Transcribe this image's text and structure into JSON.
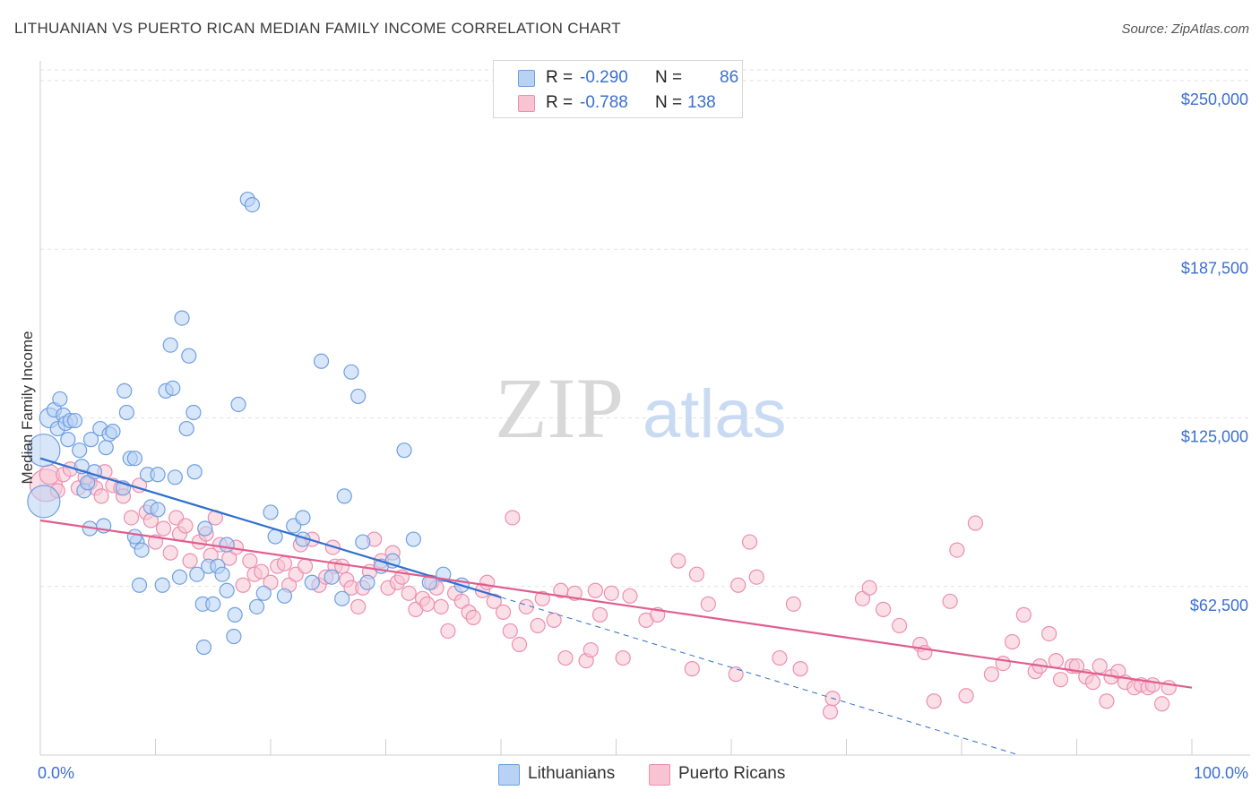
{
  "title": "LITHUANIAN VS PUERTO RICAN MEDIAN FAMILY INCOME CORRELATION CHART",
  "source": "Source: ZipAtlas.com",
  "watermark": {
    "zip": "ZIP",
    "atlas": "atlas"
  },
  "colors": {
    "lithuanians_fill": "#b8d2f4",
    "lithuanians_stroke": "#6f9fe0",
    "lithuanians_line": "#2f6fd0",
    "puerto_fill": "#f8c4d4",
    "puerto_stroke": "#ec8fb0",
    "puerto_line": "#e05e8e",
    "axis_text": "#3b6fd0",
    "grid": "#e2e2e2"
  },
  "legend": {
    "rows": [
      {
        "r_label": "R =",
        "r_value": "-0.290",
        "n_label": "N =",
        "n_value": "86"
      },
      {
        "r_label": "R =",
        "r_value": "-0.788",
        "n_label": "N =",
        "n_value": "138"
      }
    ]
  },
  "bottom_legend": {
    "lithuanians": "Lithuanians",
    "puerto_ricans": "Puerto Ricans"
  },
  "chart_data": {
    "type": "scatter",
    "title": "LITHUANIAN VS PUERTO RICAN MEDIAN FAMILY INCOME CORRELATION CHART",
    "ylabel": "Median Family Income",
    "xlabel": "",
    "x_tick_labels": [
      "0.0%",
      "100.0%"
    ],
    "y_tick_labels": [
      "$62,500",
      "$125,000",
      "$187,500",
      "$250,000"
    ],
    "y_ticks": [
      62500,
      125000,
      187500,
      250000
    ],
    "xlim": [
      0,
      100
    ],
    "ylim": [
      0,
      255000
    ],
    "grid": true,
    "legend_position": "top-center",
    "series": [
      {
        "name": "Lithuanians",
        "r": -0.29,
        "n": 86,
        "trend": {
          "x0": 0,
          "y0": 110000,
          "x1": 40,
          "y1": 58500,
          "dashed_to_x": 85,
          "dashed_to_y": 0
        },
        "points": [
          [
            0.3,
            113000,
            "L"
          ],
          [
            0.3,
            94000,
            "L"
          ],
          [
            0.8,
            125000,
            "M"
          ],
          [
            1.2,
            128000,
            "S"
          ],
          [
            1.5,
            121000,
            "S"
          ],
          [
            1.7,
            132000,
            "S"
          ],
          [
            2,
            126000,
            "S"
          ],
          [
            2.2,
            123000,
            "S"
          ],
          [
            2.4,
            117000,
            "S"
          ],
          [
            2.6,
            124000,
            "S"
          ],
          [
            3,
            124000,
            "S"
          ],
          [
            3.4,
            113000,
            "S"
          ],
          [
            3.6,
            107000,
            "S"
          ],
          [
            3.8,
            98000,
            "S"
          ],
          [
            4.1,
            101000,
            "S"
          ],
          [
            4.4,
            117000,
            "S"
          ],
          [
            4.7,
            105000,
            "S"
          ],
          [
            4.3,
            84000,
            "S"
          ],
          [
            5.2,
            121000,
            "S"
          ],
          [
            5.7,
            114000,
            "S"
          ],
          [
            6.0,
            119000,
            "S"
          ],
          [
            5.5,
            85000,
            "S"
          ],
          [
            6.3,
            120000,
            "S"
          ],
          [
            7.2,
            99000,
            "S"
          ],
          [
            7.3,
            135000,
            "S"
          ],
          [
            7.5,
            127000,
            "S"
          ],
          [
            7.8,
            110000,
            "S"
          ],
          [
            8.2,
            110000,
            "S"
          ],
          [
            8.4,
            79000,
            "S"
          ],
          [
            8.6,
            63000,
            "S"
          ],
          [
            8.2,
            81000,
            "S"
          ],
          [
            8.8,
            76000,
            "S"
          ],
          [
            9.3,
            104000,
            "S"
          ],
          [
            9.6,
            92000,
            "S"
          ],
          [
            10.2,
            91000,
            "S"
          ],
          [
            10.2,
            104000,
            "S"
          ],
          [
            10.6,
            63000,
            "S"
          ],
          [
            10.9,
            135000,
            "S"
          ],
          [
            11.3,
            152000,
            "S"
          ],
          [
            11.5,
            136000,
            "S"
          ],
          [
            11.7,
            103000,
            "S"
          ],
          [
            12.1,
            66000,
            "S"
          ],
          [
            12.3,
            162000,
            "S"
          ],
          [
            12.7,
            121000,
            "S"
          ],
          [
            12.9,
            148000,
            "S"
          ],
          [
            13.3,
            127000,
            "S"
          ],
          [
            13.4,
            105000,
            "S"
          ],
          [
            13.6,
            67000,
            "S"
          ],
          [
            14.1,
            56000,
            "S"
          ],
          [
            14.2,
            40000,
            "S"
          ],
          [
            14.3,
            84000,
            "S"
          ],
          [
            14.6,
            70000,
            "S"
          ],
          [
            15.0,
            56000,
            "S"
          ],
          [
            15.4,
            70000,
            "S"
          ],
          [
            15.8,
            67000,
            "S"
          ],
          [
            16.2,
            61000,
            "S"
          ],
          [
            16.2,
            78000,
            "S"
          ],
          [
            16.8,
            44000,
            "S"
          ],
          [
            16.9,
            52000,
            "S"
          ],
          [
            17.2,
            130000,
            "S"
          ],
          [
            18.0,
            206000,
            "S"
          ],
          [
            18.4,
            204000,
            "S"
          ],
          [
            18.8,
            55000,
            "S"
          ],
          [
            19.4,
            60000,
            "S"
          ],
          [
            20.0,
            90000,
            "S"
          ],
          [
            20.4,
            81000,
            "S"
          ],
          [
            21.2,
            59000,
            "S"
          ],
          [
            22.0,
            85000,
            "S"
          ],
          [
            22.8,
            88000,
            "S"
          ],
          [
            22.8,
            80000,
            "S"
          ],
          [
            23.6,
            64000,
            "S"
          ],
          [
            24.4,
            146000,
            "S"
          ],
          [
            25.3,
            66000,
            "S"
          ],
          [
            26.2,
            58000,
            "S"
          ],
          [
            26.4,
            96000,
            "S"
          ],
          [
            27.0,
            142000,
            "S"
          ],
          [
            27.6,
            133000,
            "S"
          ],
          [
            28.0,
            79000,
            "S"
          ],
          [
            28.4,
            64000,
            "S"
          ],
          [
            29.6,
            70000,
            "S"
          ],
          [
            30.6,
            72000,
            "S"
          ],
          [
            31.6,
            113000,
            "S"
          ],
          [
            32.4,
            80000,
            "S"
          ],
          [
            33.8,
            64000,
            "S"
          ],
          [
            35.0,
            67000,
            "S"
          ],
          [
            36.6,
            63000,
            "S"
          ]
        ]
      },
      {
        "name": "Puerto Ricans",
        "r": -0.788,
        "n": 138,
        "trend": {
          "x0": 0,
          "y0": 87000,
          "x1": 100,
          "y1": 25000
        },
        "points": [
          [
            0.5,
            100000,
            "L"
          ],
          [
            0.8,
            104000,
            "M"
          ],
          [
            1.5,
            98000,
            "S"
          ],
          [
            2.0,
            104000,
            "S"
          ],
          [
            2.6,
            106000,
            "S"
          ],
          [
            3.3,
            99000,
            "S"
          ],
          [
            3.9,
            103000,
            "S"
          ],
          [
            4.3,
            101000,
            "S"
          ],
          [
            4.8,
            99000,
            "S"
          ],
          [
            5.3,
            96000,
            "S"
          ],
          [
            5.6,
            105000,
            "S"
          ],
          [
            6.3,
            100000,
            "S"
          ],
          [
            7.0,
            99000,
            "S"
          ],
          [
            7.2,
            96000,
            "S"
          ],
          [
            7.9,
            88000,
            "S"
          ],
          [
            8.6,
            100000,
            "S"
          ],
          [
            9.2,
            90000,
            "S"
          ],
          [
            9.6,
            87000,
            "S"
          ],
          [
            10.0,
            79000,
            "S"
          ],
          [
            10.7,
            84000,
            "S"
          ],
          [
            11.3,
            75000,
            "S"
          ],
          [
            11.8,
            88000,
            "S"
          ],
          [
            12.1,
            82000,
            "S"
          ],
          [
            12.6,
            85000,
            "S"
          ],
          [
            13.0,
            72000,
            "S"
          ],
          [
            13.8,
            79000,
            "S"
          ],
          [
            14.4,
            82000,
            "S"
          ],
          [
            14.8,
            74000,
            "S"
          ],
          [
            15.2,
            88000,
            "S"
          ],
          [
            15.6,
            78000,
            "S"
          ],
          [
            16.4,
            73000,
            "S"
          ],
          [
            17.0,
            77000,
            "S"
          ],
          [
            17.6,
            63000,
            "S"
          ],
          [
            18.2,
            72000,
            "S"
          ],
          [
            18.6,
            67000,
            "S"
          ],
          [
            19.2,
            68000,
            "S"
          ],
          [
            20.0,
            64000,
            "S"
          ],
          [
            20.6,
            70000,
            "S"
          ],
          [
            21.2,
            71000,
            "S"
          ],
          [
            21.6,
            63000,
            "S"
          ],
          [
            22.2,
            67000,
            "S"
          ],
          [
            22.6,
            78000,
            "S"
          ],
          [
            23.0,
            70000,
            "S"
          ],
          [
            23.6,
            80000,
            "S"
          ],
          [
            24.2,
            63000,
            "S"
          ],
          [
            24.8,
            66000,
            "S"
          ],
          [
            25.4,
            77000,
            "S"
          ],
          [
            25.6,
            70000,
            "S"
          ],
          [
            26.2,
            70000,
            "S"
          ],
          [
            26.6,
            65000,
            "S"
          ],
          [
            27.0,
            62000,
            "S"
          ],
          [
            27.6,
            55000,
            "S"
          ],
          [
            28.0,
            62000,
            "S"
          ],
          [
            28.6,
            68000,
            "S"
          ],
          [
            29.0,
            80000,
            "S"
          ],
          [
            29.6,
            72000,
            "S"
          ],
          [
            30.2,
            62000,
            "S"
          ],
          [
            30.6,
            75000,
            "S"
          ],
          [
            31.0,
            64000,
            "S"
          ],
          [
            31.4,
            66000,
            "S"
          ],
          [
            32.0,
            60000,
            "S"
          ],
          [
            32.6,
            54000,
            "S"
          ],
          [
            33.2,
            58000,
            "S"
          ],
          [
            33.6,
            56000,
            "S"
          ],
          [
            34.0,
            64000,
            "S"
          ],
          [
            34.4,
            62000,
            "S"
          ],
          [
            34.8,
            55000,
            "S"
          ],
          [
            35.4,
            46000,
            "S"
          ],
          [
            36.0,
            60000,
            "S"
          ],
          [
            36.6,
            57000,
            "S"
          ],
          [
            37.2,
            53000,
            "S"
          ],
          [
            37.6,
            51000,
            "S"
          ],
          [
            38.4,
            61000,
            "S"
          ],
          [
            38.8,
            64000,
            "S"
          ],
          [
            39.4,
            57000,
            "S"
          ],
          [
            40.2,
            53000,
            "S"
          ],
          [
            40.8,
            46000,
            "S"
          ],
          [
            41.0,
            88000,
            "S"
          ],
          [
            41.6,
            41000,
            "S"
          ],
          [
            42.2,
            55000,
            "S"
          ],
          [
            43.2,
            48000,
            "S"
          ],
          [
            43.6,
            58000,
            "S"
          ],
          [
            44.6,
            50000,
            "S"
          ],
          [
            45.2,
            61000,
            "S"
          ],
          [
            45.6,
            36000,
            "S"
          ],
          [
            46.4,
            60000,
            "S"
          ],
          [
            47.4,
            35000,
            "S"
          ],
          [
            47.8,
            39000,
            "S"
          ],
          [
            48.2,
            61000,
            "S"
          ],
          [
            48.6,
            52000,
            "S"
          ],
          [
            49.6,
            60000,
            "S"
          ],
          [
            50.6,
            36000,
            "S"
          ],
          [
            51.2,
            59000,
            "S"
          ],
          [
            52.6,
            50000,
            "S"
          ],
          [
            53.6,
            52000,
            "S"
          ],
          [
            55.4,
            72000,
            "S"
          ],
          [
            56.6,
            32000,
            "S"
          ],
          [
            57.0,
            67000,
            "S"
          ],
          [
            58.0,
            56000,
            "S"
          ],
          [
            60.4,
            30000,
            "S"
          ],
          [
            60.6,
            63000,
            "S"
          ],
          [
            61.6,
            79000,
            "S"
          ],
          [
            62.2,
            66000,
            "S"
          ],
          [
            64.2,
            36000,
            "S"
          ],
          [
            65.4,
            56000,
            "S"
          ],
          [
            66.0,
            32000,
            "S"
          ],
          [
            68.6,
            16000,
            "S"
          ],
          [
            68.8,
            21000,
            "S"
          ],
          [
            71.4,
            58000,
            "S"
          ],
          [
            72.0,
            62000,
            "S"
          ],
          [
            73.2,
            54000,
            "S"
          ],
          [
            74.6,
            48000,
            "S"
          ],
          [
            76.4,
            41000,
            "S"
          ],
          [
            76.8,
            38000,
            "S"
          ],
          [
            77.6,
            20000,
            "S"
          ],
          [
            79.0,
            57000,
            "S"
          ],
          [
            79.6,
            76000,
            "S"
          ],
          [
            80.4,
            22000,
            "S"
          ],
          [
            81.2,
            86000,
            "S"
          ],
          [
            82.6,
            30000,
            "S"
          ],
          [
            83.6,
            34000,
            "S"
          ],
          [
            84.4,
            42000,
            "S"
          ],
          [
            85.4,
            52000,
            "S"
          ],
          [
            86.4,
            31000,
            "S"
          ],
          [
            86.8,
            33000,
            "S"
          ],
          [
            87.6,
            45000,
            "S"
          ],
          [
            88.2,
            35000,
            "S"
          ],
          [
            88.6,
            28000,
            "S"
          ],
          [
            89.6,
            33000,
            "S"
          ],
          [
            90.0,
            33000,
            "S"
          ],
          [
            90.8,
            29000,
            "S"
          ],
          [
            91.4,
            27000,
            "S"
          ],
          [
            92.0,
            33000,
            "S"
          ],
          [
            92.6,
            20000,
            "S"
          ],
          [
            93.0,
            29000,
            "S"
          ],
          [
            93.6,
            31000,
            "S"
          ],
          [
            94.2,
            27000,
            "S"
          ],
          [
            95.0,
            25000,
            "S"
          ],
          [
            95.6,
            26000,
            "S"
          ],
          [
            96.2,
            25000,
            "S"
          ],
          [
            96.6,
            26000,
            "S"
          ],
          [
            97.4,
            19000,
            "S"
          ],
          [
            98.0,
            25000,
            "S"
          ]
        ]
      }
    ]
  }
}
